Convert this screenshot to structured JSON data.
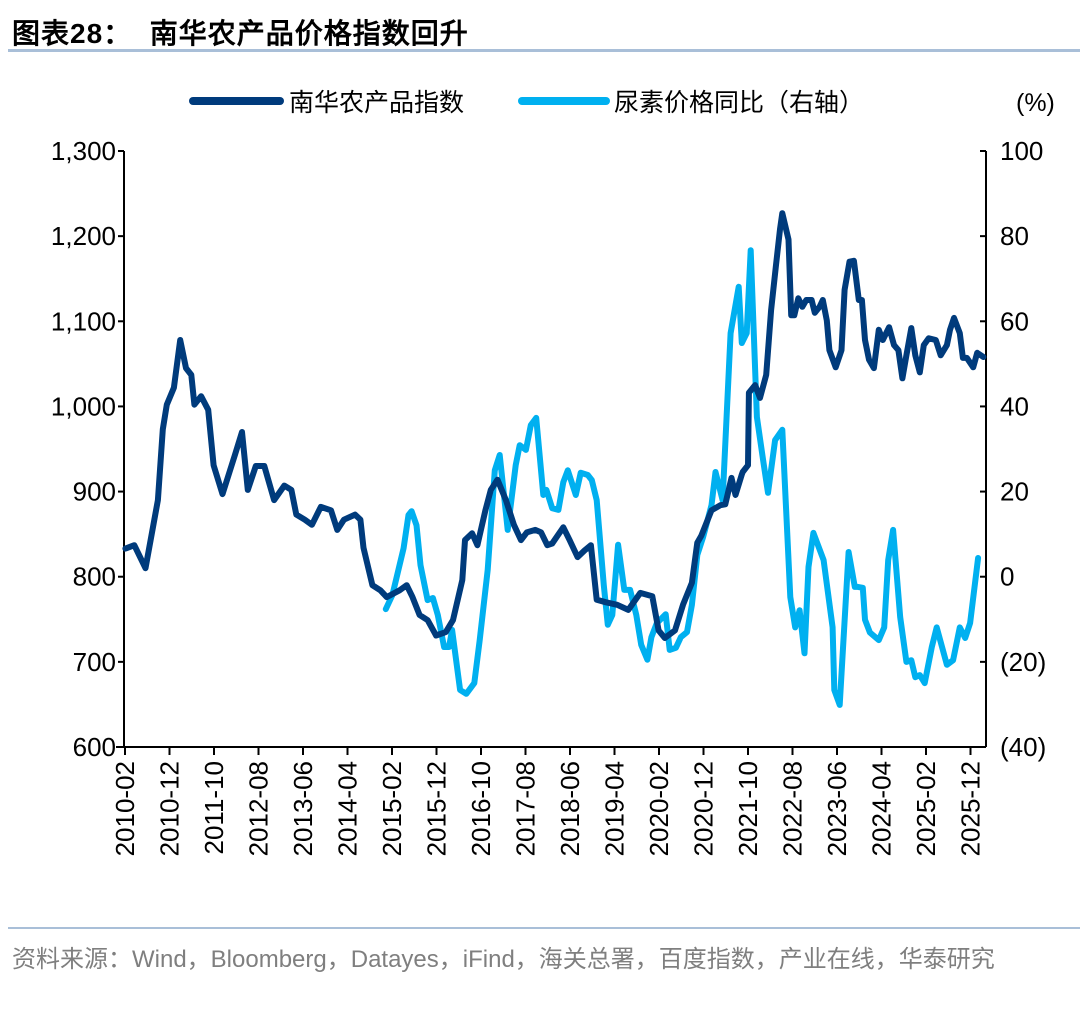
{
  "header": {
    "title": "图表28：  南华农产品价格指数回升"
  },
  "footer": {
    "source": "资料来源：Wind，Bloomberg，Datayes，iFind，海关总署，百度指数，产业在线，华泰研究"
  },
  "colors": {
    "index": "#003b7c",
    "urea": "#00b0f0",
    "axis": "#000000",
    "rule": "#a9bfd8"
  },
  "chart_data": {
    "type": "line",
    "title": "南华农产品价格指数回升",
    "x_unit": "months since 2010-02",
    "xlim": [
      -0.3,
      195.3
    ],
    "x_ticks": [
      0,
      10,
      20,
      30,
      40,
      50,
      60,
      70,
      80,
      90,
      100,
      110,
      120,
      130,
      140,
      150,
      160,
      170,
      180,
      190
    ],
    "x_tick_labels": [
      "2010-02",
      "2010-12",
      "2011-10",
      "2012-08",
      "2013-06",
      "2014-04",
      "2015-02",
      "2015-12",
      "2016-10",
      "2017-08",
      "2018-06",
      "2019-04",
      "2020-02",
      "2020-12",
      "2021-10",
      "2022-08",
      "2023-06",
      "2024-04",
      "2025-02",
      "2025-12"
    ],
    "y_left": {
      "ylim": [
        600,
        1300
      ],
      "ticks": [
        600,
        700,
        800,
        900,
        1000,
        1100,
        1200,
        1300
      ],
      "tick_labels": [
        "600",
        "700",
        "800",
        "900",
        "1,000",
        "1,100",
        "1,200",
        "1,300"
      ]
    },
    "y_right": {
      "label": "(%)",
      "ylim": [
        -40,
        100
      ],
      "ticks": [
        -40,
        -20,
        0,
        20,
        40,
        60,
        80,
        100
      ],
      "tick_labels": [
        "(40)",
        "(20)",
        "0",
        "20",
        "40",
        "60",
        "80",
        "100"
      ]
    },
    "grid": false,
    "legend_position": "top",
    "series": [
      {
        "name": "南华农产品指数",
        "axis": "left",
        "color": "#003b7c",
        "points": [
          [
            0.1,
            833
          ],
          [
            2.1,
            837
          ],
          [
            4.6,
            810
          ],
          [
            7.4,
            890
          ],
          [
            8.5,
            973
          ],
          [
            9.4,
            1002
          ],
          [
            11.0,
            1022
          ],
          [
            12.4,
            1078
          ],
          [
            13.7,
            1045
          ],
          [
            14.9,
            1037
          ],
          [
            15.6,
            1002
          ],
          [
            17.1,
            1012
          ],
          [
            18.7,
            996
          ],
          [
            19.9,
            931
          ],
          [
            21.9,
            897
          ],
          [
            24.7,
            943
          ],
          [
            26.3,
            970
          ],
          [
            27.6,
            902
          ],
          [
            29.4,
            930
          ],
          [
            31.3,
            930
          ],
          [
            33.5,
            890
          ],
          [
            35.8,
            907
          ],
          [
            37.4,
            902
          ],
          [
            38.5,
            873
          ],
          [
            40.4,
            867
          ],
          [
            42.0,
            861
          ],
          [
            44.0,
            882
          ],
          [
            46.3,
            878
          ],
          [
            47.7,
            855
          ],
          [
            49.2,
            867
          ],
          [
            51.7,
            873
          ],
          [
            52.9,
            867
          ],
          [
            53.6,
            834
          ],
          [
            55.6,
            790
          ],
          [
            57.4,
            784
          ],
          [
            58.8,
            776
          ],
          [
            61.7,
            784
          ],
          [
            63.3,
            790
          ],
          [
            64.6,
            776
          ],
          [
            66.2,
            755
          ],
          [
            68.0,
            749
          ],
          [
            69.9,
            731
          ],
          [
            72.1,
            735
          ],
          [
            73.7,
            749
          ],
          [
            75.8,
            796
          ],
          [
            76.4,
            843
          ],
          [
            78.0,
            851
          ],
          [
            79.2,
            837
          ],
          [
            81.0,
            878
          ],
          [
            82.2,
            902
          ],
          [
            83.7,
            914
          ],
          [
            85.6,
            890
          ],
          [
            87.4,
            861
          ],
          [
            89.0,
            843
          ],
          [
            90.3,
            852
          ],
          [
            92.2,
            855
          ],
          [
            93.5,
            852
          ],
          [
            94.9,
            837
          ],
          [
            96.0,
            839
          ],
          [
            98.5,
            858
          ],
          [
            99.9,
            843
          ],
          [
            101.7,
            823
          ],
          [
            103.3,
            831
          ],
          [
            104.7,
            837
          ],
          [
            106.0,
            773
          ],
          [
            108.1,
            770
          ],
          [
            110.6,
            767
          ],
          [
            113.1,
            761
          ],
          [
            115.8,
            781
          ],
          [
            118.5,
            777
          ],
          [
            119.9,
            737
          ],
          [
            121.3,
            728
          ],
          [
            123.6,
            737
          ],
          [
            125.4,
            767
          ],
          [
            127.4,
            793
          ],
          [
            128.6,
            840
          ],
          [
            129.5,
            848
          ],
          [
            131.8,
            878
          ],
          [
            133.8,
            884
          ],
          [
            134.9,
            885
          ],
          [
            136.3,
            916
          ],
          [
            137.2,
            896
          ],
          [
            138.6,
            920
          ],
          [
            138.8,
            923
          ],
          [
            140.0,
            931
          ],
          [
            140.2,
            1016
          ],
          [
            141.6,
            1025
          ],
          [
            142.7,
            1010
          ],
          [
            144.1,
            1037
          ],
          [
            145.2,
            1113
          ],
          [
            146.3,
            1166
          ],
          [
            147.2,
            1208
          ],
          [
            147.7,
            1227
          ],
          [
            149.1,
            1196
          ],
          [
            149.7,
            1107
          ],
          [
            150.4,
            1107
          ],
          [
            151.3,
            1127
          ],
          [
            152.2,
            1117
          ],
          [
            153.1,
            1125
          ],
          [
            154.3,
            1125
          ],
          [
            155.0,
            1110
          ],
          [
            156.1,
            1117
          ],
          [
            156.8,
            1125
          ],
          [
            157.7,
            1101
          ],
          [
            158.3,
            1066
          ],
          [
            159.7,
            1046
          ],
          [
            161.0,
            1066
          ],
          [
            161.7,
            1137
          ],
          [
            162.8,
            1170
          ],
          [
            163.8,
            1171
          ],
          [
            164.9,
            1125
          ],
          [
            165.6,
            1125
          ],
          [
            166.3,
            1078
          ],
          [
            167.2,
            1055
          ],
          [
            168.3,
            1045
          ],
          [
            169.4,
            1090
          ],
          [
            170.3,
            1078
          ],
          [
            171.7,
            1093
          ],
          [
            172.8,
            1072
          ],
          [
            173.8,
            1066
          ],
          [
            174.7,
            1033
          ],
          [
            175.6,
            1060
          ],
          [
            176.7,
            1092
          ],
          [
            177.6,
            1060
          ],
          [
            178.6,
            1040
          ],
          [
            179.5,
            1072
          ],
          [
            180.6,
            1080
          ],
          [
            182.2,
            1078
          ],
          [
            183.3,
            1060
          ],
          [
            184.7,
            1072
          ],
          [
            185.4,
            1090
          ],
          [
            186.3,
            1104
          ],
          [
            187.6,
            1086
          ],
          [
            188.3,
            1057
          ],
          [
            189.2,
            1057
          ],
          [
            190.6,
            1046
          ],
          [
            191.5,
            1063
          ],
          [
            192.9,
            1058
          ]
        ]
      },
      {
        "name": "尿素价格同比（右轴）",
        "axis": "right",
        "color": "#00b0f0",
        "points": [
          [
            58.6,
            -7.6
          ],
          [
            60.1,
            -4.3
          ],
          [
            62.6,
            6.7
          ],
          [
            63.7,
            14.5
          ],
          [
            64.4,
            15.4
          ],
          [
            65.5,
            12.1
          ],
          [
            66.4,
            2.7
          ],
          [
            68.0,
            -5.5
          ],
          [
            69.2,
            -5
          ],
          [
            70.3,
            -9
          ],
          [
            71.7,
            -16.5
          ],
          [
            72.8,
            -16.5
          ],
          [
            73.5,
            -12.5
          ],
          [
            75.3,
            -26.6
          ],
          [
            76.7,
            -27.5
          ],
          [
            78.5,
            -25
          ],
          [
            79.7,
            -14.9
          ],
          [
            81.5,
            1.6
          ],
          [
            83.1,
            25
          ],
          [
            84.2,
            28.6
          ],
          [
            86.0,
            11
          ],
          [
            87.8,
            26.2
          ],
          [
            88.7,
            30.9
          ],
          [
            90.1,
            29.8
          ],
          [
            91.2,
            35.6
          ],
          [
            92.4,
            37.3
          ],
          [
            94.0,
            19.2
          ],
          [
            94.7,
            20.4
          ],
          [
            96.0,
            16.1
          ],
          [
            97.4,
            15.7
          ],
          [
            98.5,
            22.2
          ],
          [
            99.5,
            25
          ],
          [
            101.3,
            19.2
          ],
          [
            102.4,
            24.4
          ],
          [
            104.0,
            23.9
          ],
          [
            104.9,
            22.7
          ],
          [
            106.0,
            18
          ],
          [
            107.6,
            -2
          ],
          [
            108.5,
            -11.3
          ],
          [
            109.5,
            -9
          ],
          [
            110.8,
            7.5
          ],
          [
            112.2,
            -3.1
          ],
          [
            113.5,
            -3.1
          ],
          [
            114.9,
            -9
          ],
          [
            116.0,
            -16
          ],
          [
            117.4,
            -19.5
          ],
          [
            118.3,
            -14.2
          ],
          [
            119.5,
            -10.9
          ],
          [
            121.5,
            -8.8
          ],
          [
            122.4,
            -17.2
          ],
          [
            123.8,
            -16.7
          ],
          [
            124.9,
            -14.2
          ],
          [
            126.3,
            -13
          ],
          [
            127.4,
            -6.6
          ],
          [
            128.6,
            5.1
          ],
          [
            129.9,
            9.3
          ],
          [
            131.8,
            16.8
          ],
          [
            132.7,
            24.6
          ],
          [
            134.3,
            18
          ],
          [
            136.1,
            57.2
          ],
          [
            137.9,
            68.1
          ],
          [
            138.6,
            54.9
          ],
          [
            139.7,
            57.2
          ],
          [
            140.6,
            76.7
          ],
          [
            142.0,
            37.5
          ],
          [
            143.4,
            27.4
          ],
          [
            144.5,
            19.7
          ],
          [
            146.1,
            32.1
          ],
          [
            147.7,
            34.5
          ],
          [
            149.5,
            -4.8
          ],
          [
            150.6,
            -11.9
          ],
          [
            151.6,
            -7.9
          ],
          [
            152.7,
            -18
          ],
          [
            153.6,
            2.3
          ],
          [
            154.7,
            10.3
          ],
          [
            157.0,
            3.9
          ],
          [
            159.0,
            -11.9
          ],
          [
            159.4,
            -26.6
          ],
          [
            160.6,
            -30.1
          ],
          [
            162.6,
            5.8
          ],
          [
            164.0,
            -2.4
          ],
          [
            164.7,
            -2.4
          ],
          [
            165.8,
            -2.6
          ],
          [
            166.3,
            -10.1
          ],
          [
            167.4,
            -13.1
          ],
          [
            169.4,
            -14.9
          ],
          [
            170.6,
            -11.9
          ],
          [
            171.5,
            3.9
          ],
          [
            172.6,
            11
          ],
          [
            174.2,
            -9.5
          ],
          [
            175.6,
            -20
          ],
          [
            176.7,
            -19.6
          ],
          [
            177.6,
            -23.6
          ],
          [
            178.6,
            -23.1
          ],
          [
            179.7,
            -25
          ],
          [
            181.3,
            -16.5
          ],
          [
            182.4,
            -11.9
          ],
          [
            184.7,
            -20.7
          ],
          [
            186.1,
            -19.6
          ],
          [
            187.6,
            -11.9
          ],
          [
            188.8,
            -14.4
          ],
          [
            189.9,
            -10.9
          ],
          [
            191.7,
            4.4
          ]
        ]
      }
    ]
  }
}
